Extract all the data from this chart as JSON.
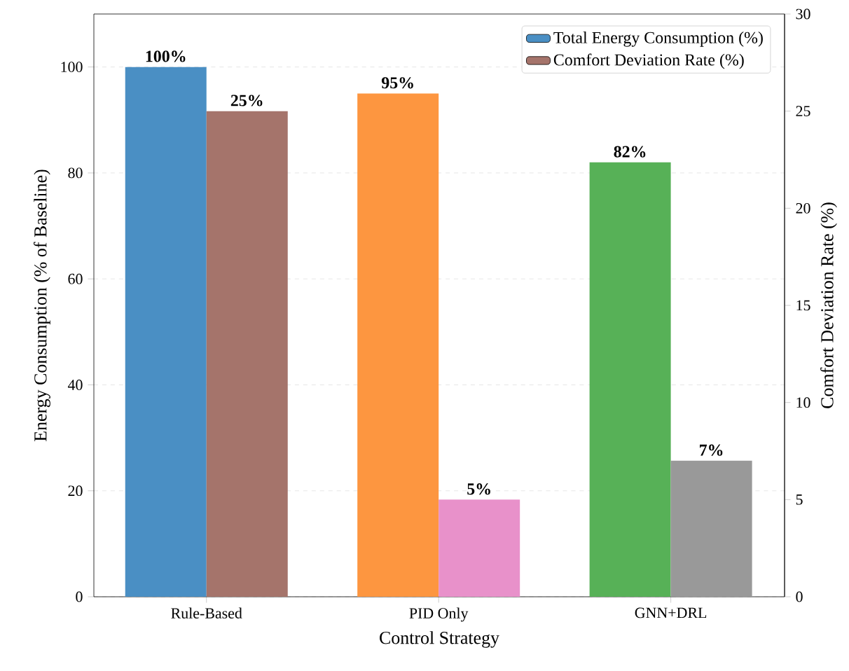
{
  "chart_data": {
    "type": "bar",
    "xlabel": "Control Strategy",
    "ylabel": "Energy Consumption (% of Baseline)",
    "y2label": "Comfort Deviation Rate (%)",
    "categories": [
      "Rule-Based",
      "PID Only",
      "GNN+DRL"
    ],
    "series": [
      {
        "name": "Total Energy Consumption (%)",
        "color": "#4a8fc4",
        "colors": [
          "#4a8fc4",
          "#fd9640",
          "#57b157"
        ],
        "values": [
          100,
          95,
          82
        ],
        "value_labels": [
          "100%",
          "95%",
          "82%"
        ]
      },
      {
        "name": "Comfort Deviation Rate (%)",
        "color": "#a5746b",
        "colors": [
          "#a5746b",
          "#e891ca",
          "#999999"
        ],
        "values": [
          25,
          5,
          7
        ],
        "value_labels": [
          "25%",
          "5%",
          "7%"
        ],
        "axis": "y2"
      }
    ],
    "ylim": [
      0,
      110
    ],
    "yticks": [
      0,
      20,
      40,
      60,
      80,
      100
    ],
    "y2lim": [
      0,
      30
    ],
    "y2ticks": [
      0,
      5,
      10,
      15,
      20,
      25,
      30
    ],
    "grid": "y",
    "legend": "top right"
  }
}
